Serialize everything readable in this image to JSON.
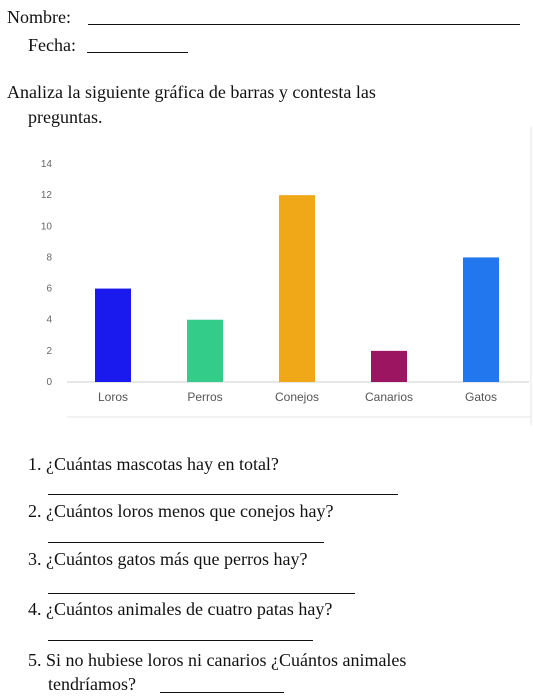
{
  "header": {
    "name_label": "Nombre:",
    "date_label": "Fecha:"
  },
  "instructions": {
    "line1": "Analiza la siguiente gráfica de barras y contesta las",
    "line2": "preguntas."
  },
  "chart_data": {
    "type": "bar",
    "categories": [
      "Loros",
      "Perros",
      "Conejos",
      "Canarios",
      "Gatos"
    ],
    "values": [
      6,
      4,
      12,
      2,
      8
    ],
    "colors": [
      "#1a1aee",
      "#33cc88",
      "#f0a818",
      "#9b1560",
      "#2277ee"
    ],
    "yticks": [
      0,
      2,
      4,
      6,
      8,
      10,
      12,
      14
    ],
    "ylim": [
      0,
      14
    ],
    "grid": false,
    "title": "",
    "xlabel": "",
    "ylabel": ""
  },
  "questions": [
    {
      "number": "1.",
      "text": "¿Cuántas mascotas hay en total?"
    },
    {
      "number": "2.",
      "text": "¿Cuántos loros menos que conejos hay?"
    },
    {
      "number": "3.",
      "text": "¿Cuántos gatos más que perros hay?"
    },
    {
      "number": "4.",
      "text": "¿Cuántos animales de cuatro patas hay?"
    },
    {
      "number": "5.",
      "text": "Si no hubiese loros ni canarios ¿Cuántos animales",
      "text2": "tendríamos?"
    }
  ]
}
